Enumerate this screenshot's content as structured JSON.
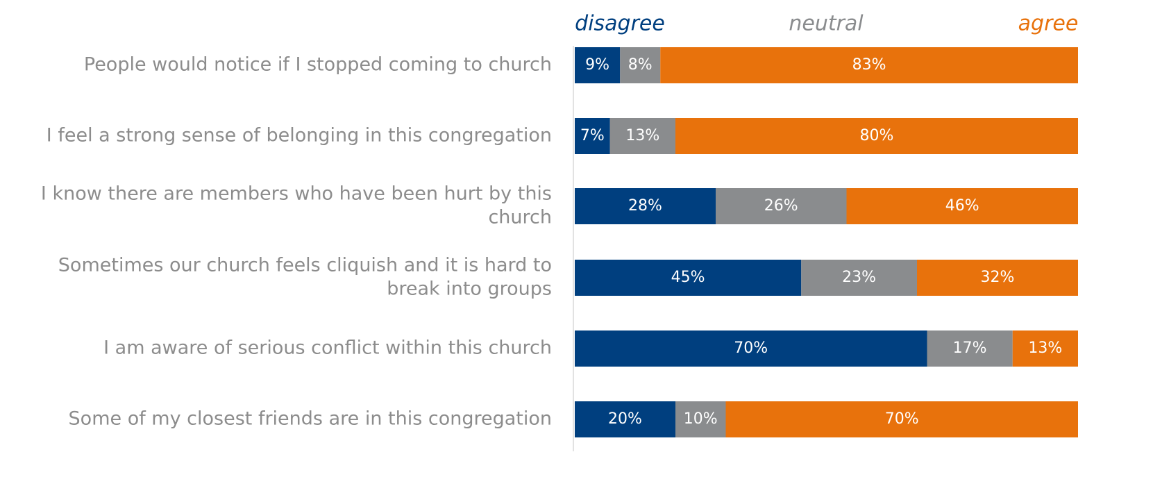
{
  "chart_data": {
    "type": "bar",
    "orientation": "horizontal",
    "stacked": true,
    "unit": "%",
    "categories": [
      "People would notice if I stopped coming to church",
      "I feel a strong sense of belonging in this congregation",
      "I know there are members who have been hurt by this church",
      "Sometimes our church feels cliquish and it is hard to break into groups",
      "I am aware of serious conflict within this church",
      "Some of my closest friends are in this congregation"
    ],
    "category_lines": [
      [
        "People would notice if I stopped coming to church"
      ],
      [
        "I feel a strong sense of belonging in this congregation"
      ],
      [
        "I know there are members who have been hurt by this",
        "church"
      ],
      [
        "Sometimes our church feels cliquish and it is hard to",
        "break into groups"
      ],
      [
        "I am aware of serious conflict within this church"
      ],
      [
        "Some of my closest friends are in this congregation"
      ]
    ],
    "series": [
      {
        "name": "disagree",
        "color": "#003f7f",
        "values": [
          9,
          7,
          28,
          45,
          70,
          20
        ]
      },
      {
        "name": "neutral",
        "color": "#8a8c8e",
        "values": [
          8,
          13,
          26,
          23,
          17,
          10
        ]
      },
      {
        "name": "agree",
        "color": "#e8720c",
        "values": [
          83,
          80,
          46,
          32,
          13,
          70
        ]
      }
    ],
    "xlim": [
      0,
      100
    ],
    "grid": false,
    "legend_position": "top",
    "title": "",
    "xlabel": "",
    "ylabel": ""
  }
}
